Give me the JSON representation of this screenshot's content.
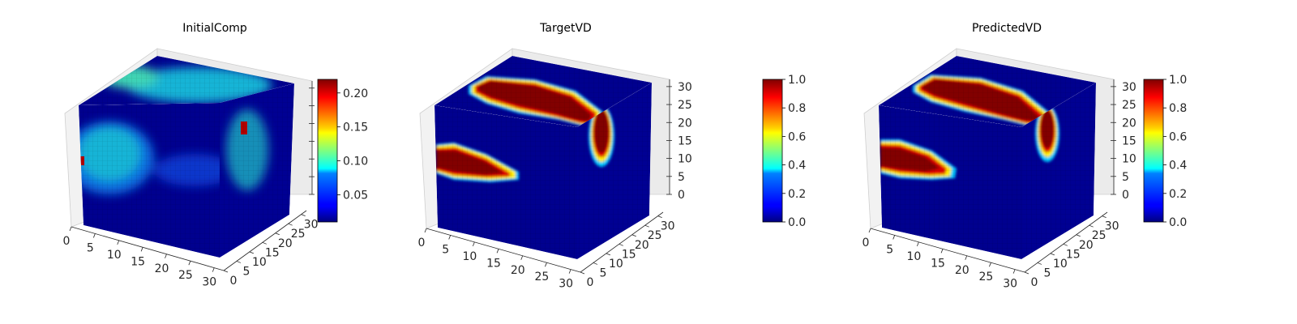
{
  "chart_data": [
    {
      "type": "voxel-3d",
      "title": "InitialComp",
      "grid_size": 32,
      "x_ticks": [
        "0",
        "5",
        "10",
        "15",
        "20",
        "25",
        "30"
      ],
      "y_ticks": [
        "0",
        "5",
        "10",
        "15",
        "20",
        "25",
        "30"
      ],
      "z_ticks": [],
      "colorbar": {
        "cmap": "jet",
        "vmin": 0.01,
        "vmax": 0.22,
        "ticks": [
          0.05,
          0.1,
          0.15,
          0.2
        ],
        "tick_labels": [
          "0.05",
          "0.10",
          "0.15",
          "0.20"
        ]
      },
      "features": [
        {
          "face": "front",
          "shape": "blob",
          "value": 0.1
        },
        {
          "face": "top",
          "shape": "blob",
          "value": 0.1
        },
        {
          "face": "side",
          "shape": "blob",
          "value": 0.09
        }
      ]
    },
    {
      "type": "voxel-3d",
      "title": "TargetVD",
      "grid_size": 32,
      "x_ticks": [
        "0",
        "5",
        "10",
        "15",
        "20",
        "25",
        "30"
      ],
      "y_ticks": [
        "0",
        "5",
        "10",
        "15",
        "20",
        "25",
        "30"
      ],
      "z_ticks": [
        "0",
        "5",
        "10",
        "15",
        "20",
        "25",
        "30"
      ],
      "colorbar": {
        "cmap": "jet",
        "vmin": 0.0,
        "vmax": 1.0,
        "ticks": [
          0.0,
          0.2,
          0.4,
          0.6,
          0.8,
          1.0
        ],
        "tick_labels": [
          "0.0",
          "0.2",
          "0.4",
          "0.6",
          "0.8",
          "1.0"
        ]
      },
      "features": [
        {
          "face": "front",
          "shape": "ellipse",
          "value": 1.0
        },
        {
          "face": "top",
          "shape": "band",
          "value": 1.0
        },
        {
          "face": "side",
          "shape": "ellipse",
          "value": 1.0
        }
      ]
    },
    {
      "type": "voxel-3d",
      "title": "PredictedVD",
      "grid_size": 32,
      "x_ticks": [
        "0",
        "5",
        "10",
        "15",
        "20",
        "25",
        "30"
      ],
      "y_ticks": [
        "0",
        "5",
        "10",
        "15",
        "20",
        "25",
        "30"
      ],
      "z_ticks": [
        "0",
        "5",
        "10",
        "15",
        "20",
        "25",
        "30"
      ],
      "colorbar": {
        "cmap": "jet",
        "vmin": 0.0,
        "vmax": 1.0,
        "ticks": [
          0.0,
          0.2,
          0.4,
          0.6,
          0.8,
          1.0
        ],
        "tick_labels": [
          "0.0",
          "0.2",
          "0.4",
          "0.6",
          "0.8",
          "1.0"
        ]
      },
      "features": [
        {
          "face": "front",
          "shape": "ellipse",
          "value": 1.0
        },
        {
          "face": "top",
          "shape": "band",
          "value": 1.0
        },
        {
          "face": "side",
          "shape": "ellipse",
          "value": 1.0
        }
      ]
    }
  ]
}
